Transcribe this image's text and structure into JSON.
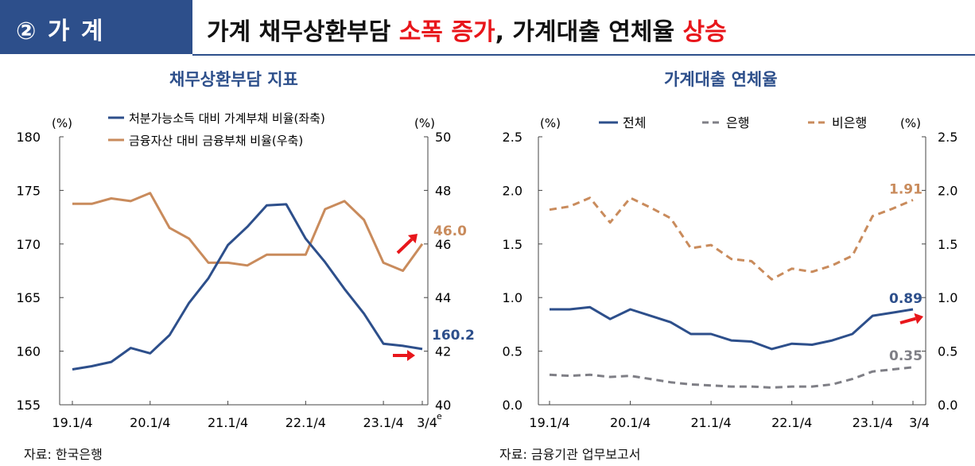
{
  "header": {
    "section_label": "② 가 계",
    "headline_parts": [
      "가계 채무상환부담 ",
      "소폭 증가",
      ", 가계대출 연체율 ",
      "상승"
    ]
  },
  "left": {
    "title": "채무상환부담 지표",
    "source": "자료: 한국은행"
  },
  "right": {
    "title": "가계대출 연체율",
    "source": "자료: 금융기관 업무보고서"
  },
  "colors": {
    "blue": "#2d4f8b",
    "orange": "#c98b5c",
    "gray": "#7f7f86",
    "red": "#e8161b"
  },
  "chart_data": [
    {
      "type": "line",
      "title": "채무상환부담 지표",
      "unit_left": "(%)",
      "unit_right": "(%)",
      "x_ticks": [
        "19.1/4",
        "20.1/4",
        "21.1/4",
        "22.1/4",
        "23.1/4",
        "3/4"
      ],
      "x_note": "e",
      "ylim_left": [
        155,
        180
      ],
      "yticks_left": [
        155,
        160,
        165,
        170,
        175,
        180
      ],
      "ylim_right": [
        40,
        50
      ],
      "yticks_right": [
        40,
        42,
        44,
        46,
        48,
        50
      ],
      "series": [
        {
          "name": "처분가능소득 대비 가계부채 비율(좌축)",
          "axis": "left",
          "values": [
            158.3,
            158.6,
            159.0,
            160.3,
            159.8,
            161.5,
            164.5,
            166.8,
            169.9,
            171.6,
            173.6,
            173.7,
            170.5,
            168.3,
            165.8,
            163.5,
            160.7,
            160.5,
            160.2
          ],
          "end_label": "160.2"
        },
        {
          "name": "금융자산 대비 금융부채 비율(우축)",
          "axis": "right",
          "values": [
            47.5,
            47.5,
            47.7,
            47.6,
            47.9,
            46.6,
            46.2,
            45.3,
            45.3,
            45.2,
            45.6,
            45.6,
            45.6,
            47.3,
            47.6,
            46.9,
            45.3,
            45.0,
            46.0
          ],
          "end_label": "46.0"
        }
      ]
    },
    {
      "type": "line",
      "title": "가계대출 연체율",
      "unit_left": "(%)",
      "unit_right": "(%)",
      "x_ticks": [
        "19.1/4",
        "20.1/4",
        "21.1/4",
        "22.1/4",
        "23.1/4",
        "3/4"
      ],
      "ylim": [
        0,
        2.5
      ],
      "yticks": [
        "0.0",
        "0.5",
        "1.0",
        "1.5",
        "2.0",
        "2.5"
      ],
      "series": [
        {
          "name": "전체",
          "style": "solid",
          "values": [
            0.89,
            0.89,
            0.91,
            0.8,
            0.89,
            0.83,
            0.77,
            0.66,
            0.66,
            0.6,
            0.59,
            0.52,
            0.57,
            0.56,
            0.6,
            0.66,
            0.83,
            0.86,
            0.89
          ],
          "end_label": "0.89"
        },
        {
          "name": "은행",
          "style": "dashed",
          "values": [
            0.28,
            0.27,
            0.28,
            0.26,
            0.27,
            0.24,
            0.21,
            0.19,
            0.18,
            0.17,
            0.17,
            0.16,
            0.17,
            0.17,
            0.19,
            0.24,
            0.31,
            0.33,
            0.35
          ],
          "end_label": "0.35"
        },
        {
          "name": "비은행",
          "style": "dashed",
          "values": [
            1.82,
            1.85,
            1.93,
            1.7,
            1.93,
            1.84,
            1.74,
            1.46,
            1.49,
            1.36,
            1.34,
            1.17,
            1.27,
            1.24,
            1.3,
            1.39,
            1.76,
            1.83,
            1.91
          ],
          "end_label": "1.91"
        }
      ]
    }
  ]
}
